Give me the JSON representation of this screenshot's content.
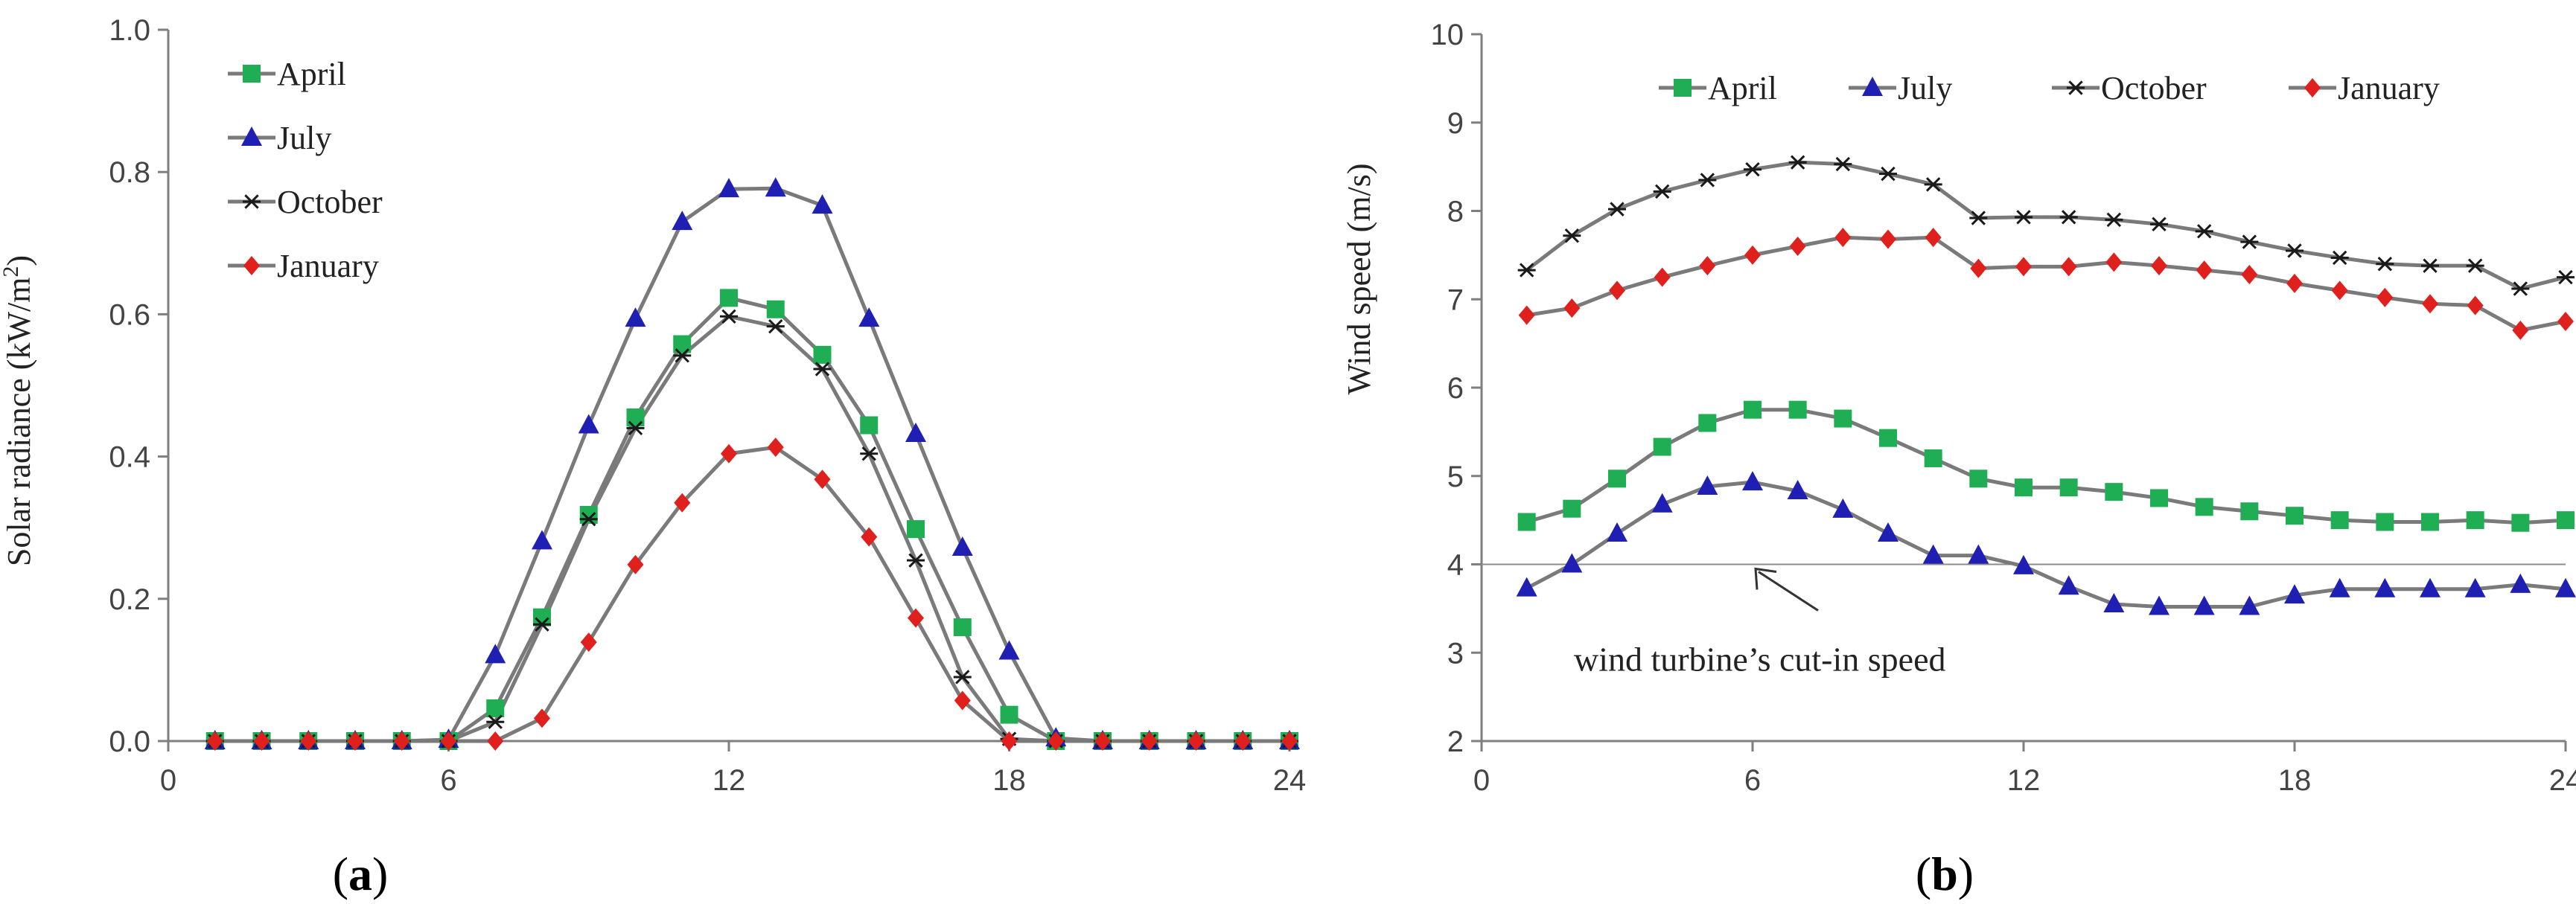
{
  "chart_data": [
    {
      "type": "line",
      "panel_label": "(a)",
      "panel_letter": "a",
      "title": "",
      "xlabel": "",
      "ylabel": "Solar radiance (kW/m²)",
      "ylabel_main": "Solar radiance (kW/m",
      "ylabel_sup": "2",
      "ylabel_end": ")",
      "xlim": [
        0,
        24
      ],
      "ylim": [
        0,
        1.0
      ],
      "xticks": [
        0,
        6,
        12,
        18,
        24
      ],
      "xtick_labels": [
        "0",
        "6",
        "12",
        "18",
        "24"
      ],
      "yticks": [
        0,
        0.2,
        0.4,
        0.6,
        0.8,
        1.0
      ],
      "ytick_labels": [
        "0.0",
        "0.2",
        "0.4",
        "0.6",
        "0.8",
        "1.0"
      ],
      "legend_position": "top-left",
      "x": [
        1,
        2,
        3,
        4,
        5,
        6,
        7,
        8,
        9,
        10,
        11,
        12,
        13,
        14,
        15,
        16,
        17,
        18,
        19,
        20,
        21,
        22,
        23,
        24
      ],
      "series": [
        {
          "name": "April",
          "marker": "square",
          "color": "#1fae54",
          "values": [
            0,
            0,
            0,
            0,
            0,
            0,
            0.046,
            0.174,
            0.318,
            0.455,
            0.558,
            0.623,
            0.607,
            0.543,
            0.444,
            0.298,
            0.16,
            0.037,
            0,
            0,
            0,
            0,
            0,
            0
          ]
        },
        {
          "name": "July",
          "marker": "triangle",
          "color": "#1f1fb4",
          "values": [
            0,
            0,
            0,
            0,
            0,
            0.002,
            0.121,
            0.281,
            0.444,
            0.594,
            0.73,
            0.776,
            0.777,
            0.753,
            0.594,
            0.432,
            0.272,
            0.126,
            0.004,
            0,
            0,
            0,
            0,
            0
          ]
        },
        {
          "name": "October",
          "marker": "asterisk",
          "color": "#1a1a1a",
          "values": [
            0,
            0,
            0,
            0,
            0,
            0,
            0.027,
            0.164,
            0.312,
            0.44,
            0.542,
            0.597,
            0.583,
            0.523,
            0.404,
            0.254,
            0.09,
            0.003,
            0,
            0,
            0,
            0,
            0,
            0
          ]
        },
        {
          "name": "January",
          "marker": "diamond",
          "color": "#e0201c",
          "values": [
            0,
            0,
            0,
            0,
            0,
            0,
            0,
            0.032,
            0.139,
            0.248,
            0.335,
            0.404,
            0.413,
            0.368,
            0.287,
            0.173,
            0.057,
            0,
            0,
            0,
            0,
            0,
            0,
            0
          ]
        }
      ]
    },
    {
      "type": "line",
      "panel_label": "(b)",
      "panel_letter": "b",
      "title": "",
      "xlabel": "",
      "ylabel": "Wind speed (m/s)",
      "xlim": [
        0,
        24
      ],
      "ylim": [
        2,
        10
      ],
      "xticks": [
        0,
        6,
        12,
        18,
        24
      ],
      "xtick_labels": [
        "0",
        "6",
        "12",
        "18",
        "24"
      ],
      "yticks": [
        2,
        3,
        4,
        5,
        6,
        7,
        8,
        9,
        10
      ],
      "ytick_labels": [
        "2",
        "3",
        "4",
        "5",
        "6",
        "7",
        "8",
        "9",
        "10"
      ],
      "legend_position": "top-center",
      "reference_line": {
        "y": 4,
        "label": "wind turbine’s cut-in speed",
        "arrow_x": 6
      },
      "x": [
        1,
        2,
        3,
        4,
        5,
        6,
        7,
        8,
        9,
        10,
        11,
        12,
        13,
        14,
        15,
        16,
        17,
        18,
        19,
        20,
        21,
        22,
        23,
        24
      ],
      "series": [
        {
          "name": "April",
          "marker": "square",
          "color": "#1fae54",
          "values": [
            4.48,
            4.63,
            4.97,
            5.33,
            5.6,
            5.75,
            5.75,
            5.65,
            5.43,
            5.2,
            4.97,
            4.87,
            4.87,
            4.82,
            4.75,
            4.65,
            4.6,
            4.55,
            4.5,
            4.48,
            4.48,
            4.5,
            4.47,
            4.5
          ]
        },
        {
          "name": "July",
          "marker": "triangle",
          "color": "#1f1fb4",
          "values": [
            3.73,
            4.0,
            4.35,
            4.68,
            4.88,
            4.93,
            4.83,
            4.62,
            4.35,
            4.1,
            4.1,
            3.98,
            3.75,
            3.55,
            3.52,
            3.52,
            3.52,
            3.65,
            3.72,
            3.72,
            3.72,
            3.72,
            3.77,
            3.72
          ]
        },
        {
          "name": "October",
          "marker": "asterisk",
          "color": "#1a1a1a",
          "values": [
            7.33,
            7.72,
            8.02,
            8.22,
            8.35,
            8.47,
            8.55,
            8.53,
            8.42,
            8.3,
            7.92,
            7.93,
            7.93,
            7.9,
            7.85,
            7.77,
            7.65,
            7.55,
            7.47,
            7.4,
            7.38,
            7.38,
            7.12,
            7.25
          ]
        },
        {
          "name": "January",
          "marker": "diamond",
          "color": "#e0201c",
          "values": [
            6.82,
            6.9,
            7.1,
            7.25,
            7.38,
            7.5,
            7.6,
            7.7,
            7.68,
            7.7,
            7.35,
            7.37,
            7.37,
            7.42,
            7.38,
            7.33,
            7.28,
            7.18,
            7.1,
            7.02,
            6.95,
            6.93,
            6.65,
            6.75
          ]
        }
      ]
    }
  ]
}
